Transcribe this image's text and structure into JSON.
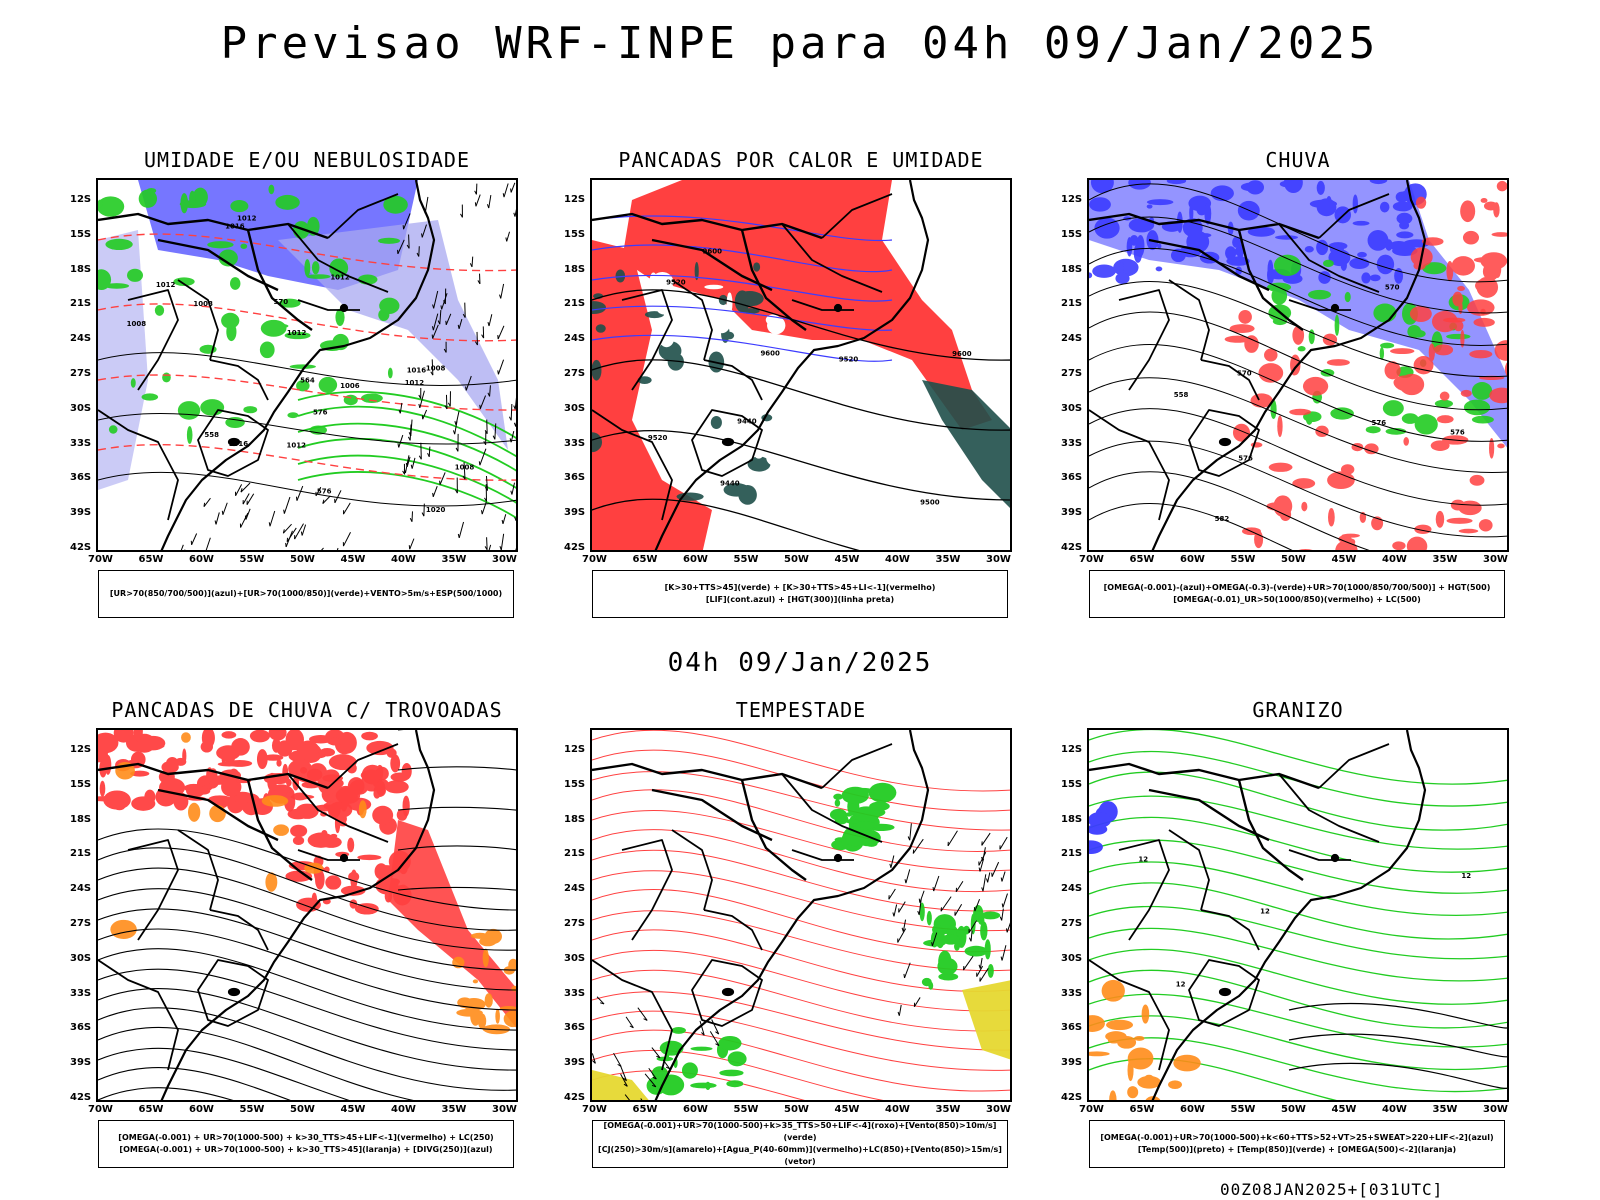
{
  "title": "Previsao WRF-INPE  para 04h 09/Jan/2025",
  "mid_time": "04h 09/Jan/2025",
  "footer": "00Z08JAN2025+[031UTC]",
  "lat_ticks": [
    "12S",
    "15S",
    "18S",
    "21S",
    "24S",
    "27S",
    "30S",
    "33S",
    "36S",
    "39S",
    "42S"
  ],
  "lon_ticks": [
    "70W",
    "65W",
    "60W",
    "55W",
    "50W",
    "45W",
    "40W",
    "35W",
    "30W"
  ],
  "colors": {
    "blue": "#3c3cff",
    "lightblue": "#a8a8f0",
    "green": "#22cc22",
    "red": "#ff4040",
    "darkgreen": "#1f4f4a",
    "orange": "#ff8c1a",
    "yellow": "#e6d830"
  },
  "panels": [
    {
      "id": "umidade",
      "title": "UMIDADE E/OU NEBULOSIDADE",
      "legend": [
        "[UR>70(850/700/500)](azul)+[UR>70(1000/850)](verde)+VENTO>5m/s+ESP(500/1000)"
      ],
      "labels": [
        "1008",
        "1012",
        "1012",
        "1016",
        "1016",
        "1012",
        "1008",
        "1006",
        "1008",
        "1012",
        "1012",
        "1016",
        "1020",
        "1008",
        "576",
        "576",
        "570",
        "564",
        "558",
        "1012"
      ]
    },
    {
      "id": "pancadas-calor",
      "title": "PANCADAS POR CALOR E UMIDADE",
      "legend": [
        "[K>30+TTS>45](verde) + [K>30+TTS>45+LI<-1](vermelho)",
        "[LIF](cont.azul) + [HGT(300)](linha preta)"
      ],
      "labels": [
        "9600",
        "9600",
        "9600",
        "9500",
        "9520",
        "9520",
        "9520",
        "9440",
        "9440"
      ]
    },
    {
      "id": "chuva",
      "title": "CHUVA",
      "legend": [
        "[OMEGA(-0.001)-(azul)+OMEGA(-0.3)-(verde)+UR>70(1000/850/700/500)] + HGT(500)",
        "[OMEGA(-0.01)_UR>50(1000/850)(vermelho) + LC(500)"
      ],
      "labels": [
        "582",
        "576",
        "570",
        "576",
        "576",
        "570",
        "558"
      ]
    },
    {
      "id": "pancadas-trovoadas",
      "title": "PANCADAS DE CHUVA C/ TROVOADAS",
      "legend": [
        "[OMEGA(-0.001) + UR>70(1000-500) + k>30_TTS>45+LIF<-1](vermelho) + LC(250)",
        "[OMEGA(-0.001) + UR>70(1000-500) + k>30_TTS>45](laranja) + [DIVG(250)](azul)"
      ],
      "labels": []
    },
    {
      "id": "tempestade",
      "title": "TEMPESTADE",
      "legend": [
        "[OMEGA(-0.001)+UR>70(1000-500)+k>35_TTS>50+LIF<-4](roxo)+[Vento(850)>10m/s](verde)",
        "[CJ(250)>30m/s](amarelo)+[Agua_P(40-60mm)](vermelho)+LC(850)+[Vento(850)>15m/s](vetor)"
      ],
      "labels": []
    },
    {
      "id": "granizo",
      "title": "GRANIZO",
      "legend": [
        "[OMEGA(-0.001)+UR>70(1000-500)+k<60+TTS>52+VT>25+SWEAT>220+LIF<-2](azul)",
        "[Temp(500)](preto) + [Temp(850)](verde) + [OMEGA(500)<-2](laranja)"
      ],
      "labels": [
        "12",
        "12",
        "12",
        "12"
      ]
    }
  ]
}
